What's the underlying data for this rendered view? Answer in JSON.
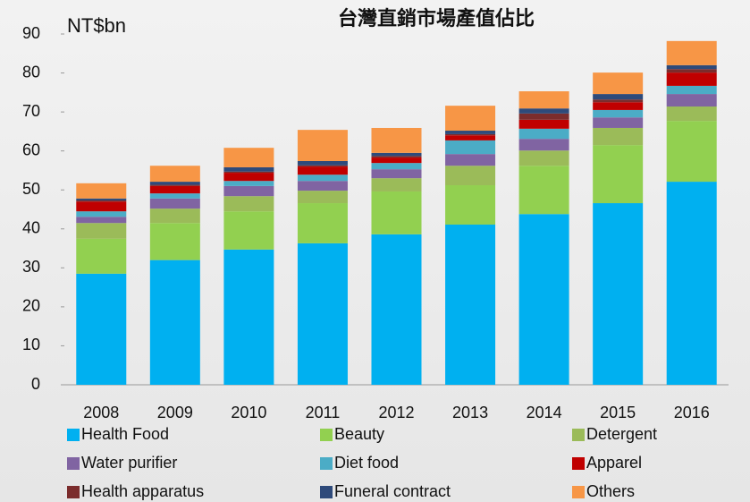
{
  "chart_data": {
    "type": "stacked_bar",
    "title": "台灣直銷市場產值佔比",
    "ylabel": "NT$bn",
    "categories": [
      "2008",
      "2009",
      "2010",
      "2011",
      "2012",
      "2013",
      "2014",
      "2015",
      "2016"
    ],
    "ylim": [
      0,
      90
    ],
    "yticks": [
      0,
      10,
      20,
      30,
      40,
      50,
      60,
      70,
      80,
      90
    ],
    "series": [
      {
        "name": "Health Food",
        "color": "#00b0f0",
        "values": [
          28.5,
          32,
          34.7,
          36.3,
          38.6,
          41.1,
          43.8,
          46.6,
          52.1
        ]
      },
      {
        "name": "Beauty",
        "color": "#92d050",
        "values": [
          9,
          9.5,
          9.8,
          10.3,
          11,
          10.1,
          12.4,
          14.9,
          15.6
        ]
      },
      {
        "name": "Detergent",
        "color": "#9bbb59",
        "values": [
          4,
          3.7,
          3.9,
          3.2,
          3.4,
          5,
          3.9,
          4.4,
          3.7
        ]
      },
      {
        "name": "Water purifier",
        "color": "#8064a2",
        "values": [
          1.6,
          2.6,
          2.6,
          2.5,
          2.3,
          3,
          3,
          2.7,
          3.2
        ]
      },
      {
        "name": "Diet food",
        "color": "#4bacc6",
        "values": [
          1.4,
          1.3,
          1.3,
          1.6,
          1.6,
          3.5,
          2.6,
          1.9,
          2.1
        ]
      },
      {
        "name": "Apparel",
        "color": "#c00000",
        "values": [
          2.5,
          1.9,
          2.1,
          2.1,
          1.4,
          1.3,
          2.3,
          2,
          3.4
        ]
      },
      {
        "name": "Health apparatus",
        "color": "#7b2c2c",
        "values": [
          0.3,
          0.3,
          0.3,
          0.3,
          0.4,
          0.3,
          1.6,
          0.7,
          0.9
        ]
      },
      {
        "name": "Funeral contract",
        "color": "#2e4a7a",
        "values": [
          0.5,
          0.8,
          1.1,
          1.1,
          0.8,
          0.9,
          1.3,
          1.4,
          1
        ]
      },
      {
        "name": "Others",
        "color": "#f79646",
        "values": [
          3.9,
          4.1,
          5,
          8,
          6.4,
          6.4,
          4.4,
          5.5,
          6.2
        ]
      }
    ]
  }
}
